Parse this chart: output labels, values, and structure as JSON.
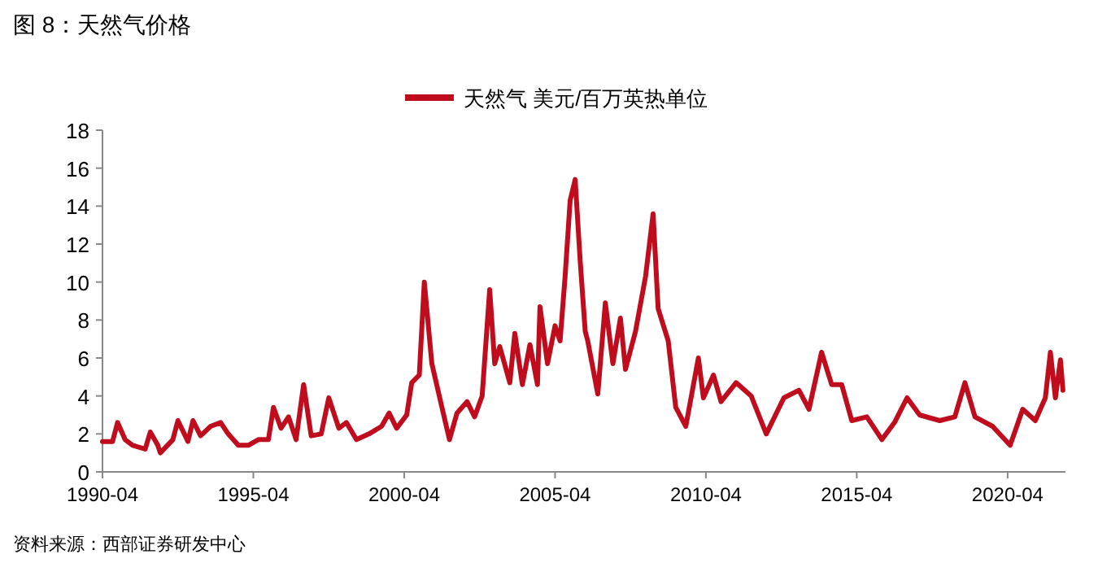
{
  "chart_data": {
    "type": "line",
    "title": "图 8：天然气价格",
    "annotations": [
      "资料来源：西部证券研发中心"
    ],
    "x": [
      "1990-04",
      "1990-08",
      "1990-10",
      "1991-01",
      "1991-04",
      "1991-09",
      "1991-11",
      "1992-02",
      "1992-03",
      "1992-08",
      "1992-10",
      "1993-02",
      "1993-04",
      "1993-07",
      "1993-11",
      "1994-03",
      "1994-06",
      "1994-10",
      "1995-02",
      "1995-06",
      "1995-10",
      "1995-12",
      "1996-03",
      "1996-06",
      "1996-09",
      "1996-12",
      "1997-03",
      "1997-07",
      "1997-10",
      "1998-02",
      "1998-05",
      "1998-09",
      "1999-02",
      "1999-07",
      "1999-10",
      "2000-01",
      "2000-05",
      "2000-07",
      "2000-10",
      "2000-12",
      "2001-03",
      "2001-07",
      "2001-10",
      "2002-01",
      "2002-05",
      "2002-08",
      "2002-11",
      "2003-02",
      "2003-04",
      "2003-06",
      "2003-10",
      "2003-12",
      "2004-03",
      "2004-06",
      "2004-09",
      "2004-10",
      "2005-01",
      "2005-04",
      "2005-06",
      "2005-08",
      "2005-10",
      "2005-12",
      "2006-02",
      "2006-04",
      "2006-05",
      "2006-09",
      "2006-12",
      "2007-03",
      "2007-06",
      "2007-08",
      "2007-12",
      "2008-04",
      "2008-07",
      "2008-09",
      "2009-01",
      "2009-04",
      "2009-08",
      "2010-01",
      "2010-03",
      "2010-07",
      "2010-10",
      "2011-04",
      "2011-10",
      "2012-04",
      "2012-11",
      "2013-05",
      "2013-09",
      "2014-02",
      "2014-06",
      "2014-10",
      "2015-02",
      "2015-08",
      "2016-02",
      "2016-07",
      "2016-12",
      "2017-05",
      "2018-01",
      "2018-07",
      "2018-11",
      "2019-03",
      "2019-10",
      "2020-05",
      "2020-10",
      "2021-03",
      "2021-07",
      "2021-09",
      "2021-11",
      "2022-01",
      "2022-02"
    ],
    "series": [
      {
        "name": "天然气 美元/百万英热单位",
        "color": "#c00d1e",
        "values": [
          1.6,
          1.6,
          2.6,
          1.7,
          1.4,
          1.2,
          2.1,
          1.4,
          1.0,
          1.7,
          2.7,
          1.6,
          2.7,
          1.9,
          2.4,
          2.6,
          2.0,
          1.4,
          1.4,
          1.7,
          1.7,
          3.4,
          2.3,
          2.9,
          1.7,
          4.6,
          1.9,
          2.0,
          3.9,
          2.3,
          2.6,
          1.7,
          2.0,
          2.4,
          3.1,
          2.3,
          3.0,
          4.7,
          5.1,
          10.0,
          5.7,
          3.4,
          1.7,
          3.1,
          3.7,
          2.9,
          4.0,
          9.6,
          5.7,
          6.6,
          4.7,
          7.3,
          4.6,
          6.7,
          4.6,
          8.7,
          5.7,
          7.7,
          6.9,
          10.3,
          14.3,
          15.4,
          11.1,
          7.4,
          6.9,
          4.1,
          8.9,
          5.7,
          8.1,
          5.4,
          7.4,
          10.3,
          13.6,
          8.6,
          6.9,
          3.4,
          2.4,
          6.0,
          3.9,
          5.1,
          3.7,
          4.7,
          4.0,
          2.0,
          3.9,
          4.3,
          3.3,
          6.3,
          4.6,
          4.6,
          2.7,
          2.9,
          1.7,
          2.6,
          3.9,
          3.0,
          2.7,
          2.9,
          4.7,
          2.9,
          2.4,
          1.4,
          3.3,
          2.7,
          3.9,
          6.3,
          3.9,
          5.9,
          4.3
        ]
      }
    ],
    "xlim": [
      "1990-04",
      "2022-03"
    ],
    "xticks": [
      "1990-04",
      "1995-04",
      "2000-04",
      "2005-04",
      "2010-04",
      "2015-04",
      "2020-04"
    ],
    "ylim": [
      0,
      18
    ],
    "yticks": [
      0,
      2,
      4,
      6,
      8,
      10,
      12,
      14,
      16,
      18
    ],
    "legend": "top",
    "grid": false
  }
}
